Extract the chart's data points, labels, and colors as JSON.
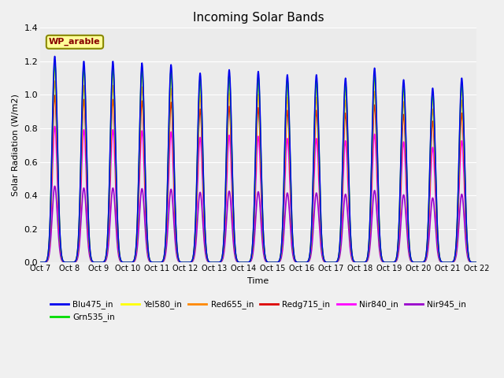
{
  "title": "Incoming Solar Bands",
  "xlabel": "Time",
  "ylabel": "Solar Radiation (W/m2)",
  "legend_label": "WP_arable",
  "ylim": [
    0,
    1.4
  ],
  "xlim_days": [
    7,
    22
  ],
  "num_days": 15,
  "series_order_plot": [
    "Nir945_in",
    "Nir840_in",
    "Redg715_in",
    "Red655_in",
    "Yel580_in",
    "Grn535_in",
    "Blu475_in"
  ],
  "series": {
    "Blu475_in": {
      "color": "#0000ee",
      "scale": 1.0,
      "zorder": 7
    },
    "Grn535_in": {
      "color": "#00dd00",
      "scale": 0.97,
      "zorder": 6
    },
    "Yel580_in": {
      "color": "#ffff00",
      "scale": 0.94,
      "zorder": 5
    },
    "Red655_in": {
      "color": "#ff8800",
      "scale": 0.88,
      "zorder": 4
    },
    "Redg715_in": {
      "color": "#dd0000",
      "scale": 0.81,
      "zorder": 3
    },
    "Nir840_in": {
      "color": "#ff00ff",
      "scale": 0.66,
      "zorder": 2
    },
    "Nir945_in": {
      "color": "#9900cc",
      "scale": 0.37,
      "zorder": 1
    }
  },
  "peaks": [
    1.23,
    1.2,
    1.2,
    1.19,
    1.18,
    1.13,
    1.15,
    1.14,
    1.12,
    1.12,
    1.1,
    1.16,
    1.09,
    1.04,
    1.1
  ],
  "tick_labels": [
    "Oct 7",
    "Oct 8",
    "Oct 9",
    "Oct 10",
    "Oct 11",
    "Oct 12",
    "Oct 13",
    "Oct 14",
    "Oct 15",
    "Oct 16",
    "Oct 17",
    "Oct 18",
    "Oct 19",
    "Oct 20",
    "Oct 21",
    "Oct 22"
  ],
  "background_color": "#f0f0f0",
  "plot_bg_color": "#ebebeb",
  "grid_color": "#ffffff",
  "annotation_bg": "#ffff99",
  "annotation_fg": "#880000",
  "annotation_edge": "#888800",
  "sigma": 0.09,
  "pts_per_day": 200,
  "linewidth": 1.2
}
